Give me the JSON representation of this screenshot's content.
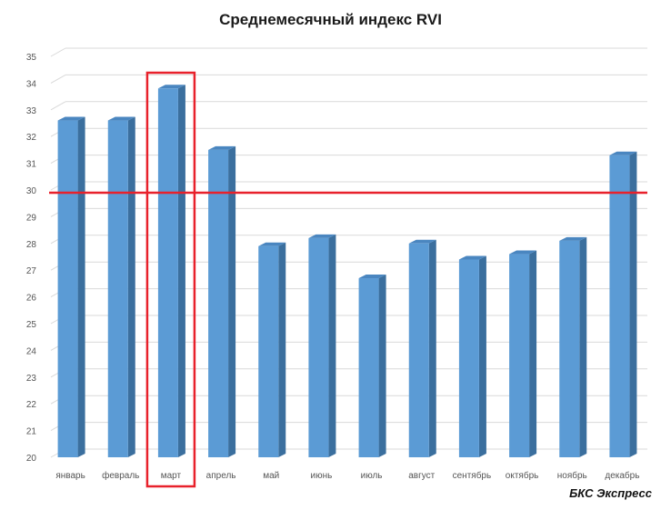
{
  "chart_data": {
    "type": "bar",
    "title": "Среднемесячный индекс RVI",
    "categories": [
      "январь",
      "февраль",
      "март",
      "апрель",
      "май",
      "июнь",
      "июль",
      "август",
      "сентябрь",
      "октябрь",
      "ноябрь",
      "декабрь"
    ],
    "values": [
      32.6,
      32.6,
      33.8,
      31.5,
      27.9,
      28.2,
      26.7,
      28.0,
      27.4,
      27.6,
      28.1,
      31.3
    ],
    "xlabel": "",
    "ylabel": "",
    "ylim": [
      20,
      35
    ],
    "yticks": [
      20,
      21,
      22,
      23,
      24,
      25,
      26,
      27,
      28,
      29,
      30,
      31,
      32,
      33,
      34,
      35
    ],
    "grid": true,
    "legend": "none",
    "reference_line": 29.9,
    "highlighted_category": "март",
    "colors": {
      "bar_front": "#5b9bd5",
      "bar_side": "#3b6f9e",
      "bar_top": "#4a86c0",
      "reference_line": "#e8212b",
      "highlight_box": "#e8212b",
      "grid": "#d9d9d9"
    }
  },
  "source": "БКС Экспресс"
}
